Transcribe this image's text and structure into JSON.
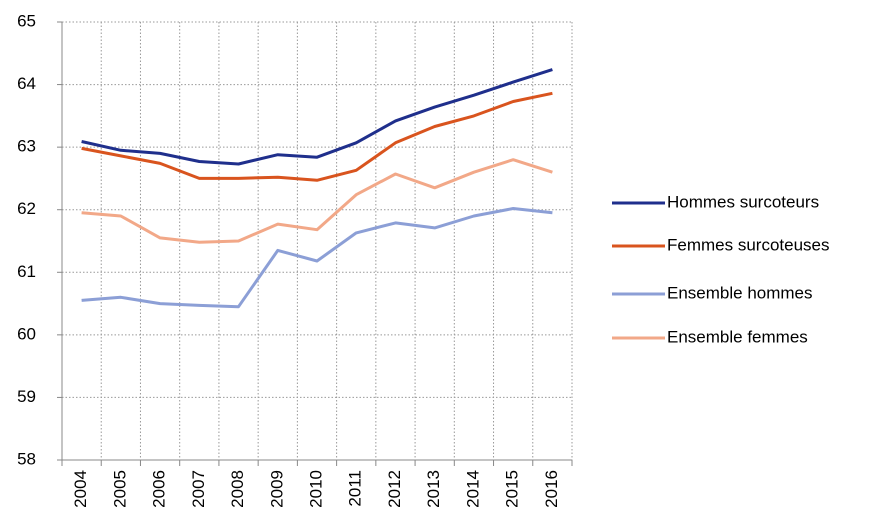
{
  "chart_data": {
    "type": "line",
    "categories": [
      "2004",
      "2005",
      "2006",
      "2007",
      "2008",
      "2009",
      "2010",
      "2011",
      "2012",
      "2013",
      "2014",
      "2015",
      "2016"
    ],
    "series": [
      {
        "name": "Hommes surcoteurs",
        "color": "#1f2f8c",
        "values": [
          63.09,
          62.95,
          62.9,
          62.77,
          62.73,
          62.88,
          62.84,
          63.07,
          63.42,
          63.64,
          63.83,
          64.04,
          64.24
        ]
      },
      {
        "name": "Femmes surcoteuses",
        "color": "#d9541e",
        "values": [
          62.98,
          62.86,
          62.74,
          62.5,
          62.5,
          62.52,
          62.47,
          62.63,
          63.07,
          63.33,
          63.5,
          63.73,
          63.86
        ]
      },
      {
        "name": "Ensemble hommes",
        "color": "#8c9fd6",
        "values": [
          60.55,
          60.6,
          60.5,
          60.47,
          60.45,
          61.35,
          61.18,
          61.63,
          61.79,
          61.71,
          61.9,
          62.02,
          61.95
        ]
      },
      {
        "name": "Ensemble femmes",
        "color": "#f2a888",
        "values": [
          61.95,
          61.9,
          61.55,
          61.48,
          61.5,
          61.77,
          61.68,
          62.24,
          62.57,
          62.35,
          62.6,
          62.8,
          62.6
        ]
      }
    ],
    "ylim": [
      58,
      65
    ],
    "yticks": [
      58,
      59,
      60,
      61,
      62,
      63,
      64,
      65
    ],
    "grid": true,
    "legend": "right"
  }
}
